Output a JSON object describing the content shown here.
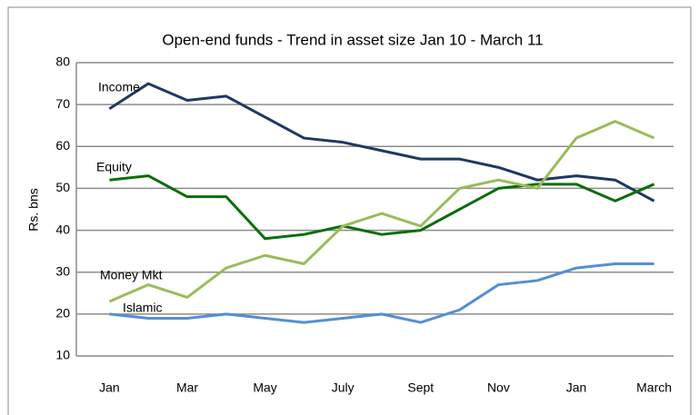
{
  "chart_data": {
    "type": "line",
    "title": "Open-end funds - Trend in asset size Jan 10 - March 11",
    "y_label": "Rs. bns",
    "categories": [
      "Jan",
      null,
      "Mar",
      null,
      "May",
      null,
      "July",
      null,
      "Sept",
      null,
      "Nov",
      null,
      "Jan",
      null,
      "March"
    ],
    "series": [
      {
        "name": "Income",
        "color": "#1f3864",
        "values": [
          69,
          75,
          71,
          72,
          67,
          62,
          61,
          59,
          57,
          57,
          55,
          52,
          53,
          52,
          47
        ]
      },
      {
        "name": "Equity",
        "color": "#0b6e0b",
        "values": [
          52,
          53,
          48,
          48,
          38,
          39,
          41,
          39,
          40,
          45,
          50,
          51,
          51,
          47,
          51
        ]
      },
      {
        "name": "Money Mkt",
        "color": "#9bbb59",
        "values": [
          23,
          27,
          24,
          31,
          34,
          32,
          41,
          44,
          41,
          50,
          52,
          50,
          62,
          66,
          62
        ]
      },
      {
        "name": "Islamic",
        "color": "#558ed5",
        "values": [
          20,
          19,
          19,
          20,
          19,
          18,
          19,
          20,
          18,
          21,
          27,
          28,
          31,
          32,
          32
        ]
      }
    ],
    "ylim": [
      10,
      80
    ],
    "yticks": [
      10,
      20,
      30,
      40,
      50,
      60,
      70,
      80
    ],
    "grid": true
  }
}
